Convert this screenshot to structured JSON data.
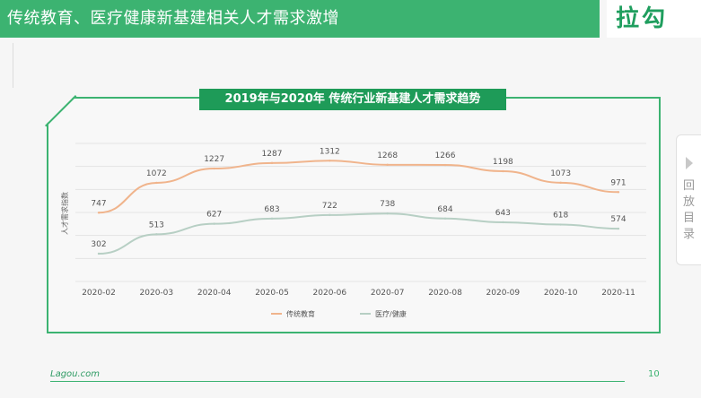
{
  "header": {
    "title": "传统教育、医疗健康新基建相关人才需求激增",
    "logo": "拉勾"
  },
  "sidebar_tab": {
    "label": "回放目录"
  },
  "footer": {
    "brand": "Lagou.com",
    "page_number": "10"
  },
  "colors": {
    "accent": "#3cb371",
    "series_edu": "#f0b48c",
    "series_med": "#b7cfc4"
  },
  "chart_data": {
    "type": "line",
    "title": "2019年与2020年 传统行业新基建人才需求趋势",
    "ylabel": "人才需求指数",
    "xlabel": "",
    "categories": [
      "2020-02",
      "2020-03",
      "2020-04",
      "2020-05",
      "2020-06",
      "2020-07",
      "2020-08",
      "2020-09",
      "2020-10",
      "2020-11"
    ],
    "series": [
      {
        "name": "传统教育",
        "values": [
          747,
          1072,
          1227,
          1287,
          1312,
          1268,
          1266,
          1198,
          1073,
          971
        ]
      },
      {
        "name": "医疗/健康",
        "values": [
          302,
          513,
          627,
          683,
          722,
          738,
          684,
          643,
          618,
          574
        ]
      }
    ],
    "ylim": [
      0,
      1500
    ],
    "grid": true,
    "legend": "bottom-center"
  }
}
